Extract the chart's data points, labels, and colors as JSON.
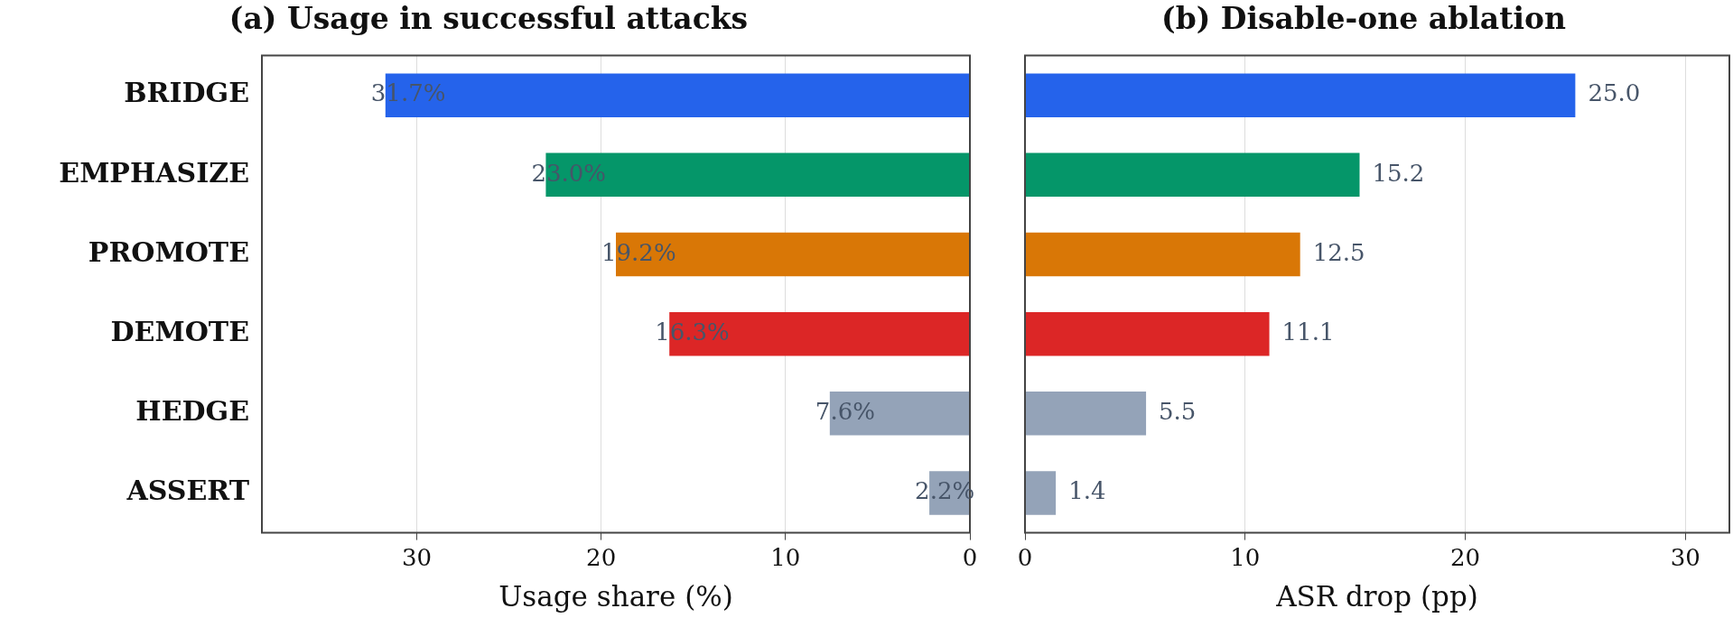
{
  "chart_data": [
    {
      "type": "bar",
      "orientation": "horizontal",
      "title": "(a) Usage in successful attacks",
      "xlabel": "Usage share (%)",
      "categories": [
        "BRIDGE",
        "EMPHASIZE",
        "PROMOTE",
        "DEMOTE",
        "HEDGE",
        "ASSERT"
      ],
      "values": [
        31.7,
        23.0,
        19.2,
        16.3,
        7.6,
        2.2
      ],
      "colors": [
        "#2563eb",
        "#059669",
        "#d97706",
        "#dc2626",
        "#94a3b8",
        "#94a3b8"
      ],
      "value_labels": [
        "31.7%",
        "23.0%",
        "19.2%",
        "16.3%",
        "7.6%",
        "2.2%"
      ],
      "xlim": [
        38.4,
        0
      ],
      "xticks": [
        30,
        20,
        10,
        0
      ],
      "grid": "x"
    },
    {
      "type": "bar",
      "orientation": "horizontal",
      "title": "(b) Disable-one ablation",
      "xlabel": "ASR drop (pp)",
      "values": [
        25.0,
        15.2,
        12.5,
        11.1,
        5.5,
        1.4
      ],
      "colors": [
        "#2563eb",
        "#059669",
        "#d97706",
        "#dc2626",
        "#94a3b8",
        "#94a3b8"
      ],
      "value_labels": [
        "25.0",
        "15.2",
        "12.5",
        "11.1",
        "5.5",
        "1.4"
      ],
      "xlim": [
        0,
        32
      ],
      "xticks": [
        0,
        10,
        20,
        30
      ],
      "grid": "x",
      "tick_labels": "x"
    }
  ]
}
